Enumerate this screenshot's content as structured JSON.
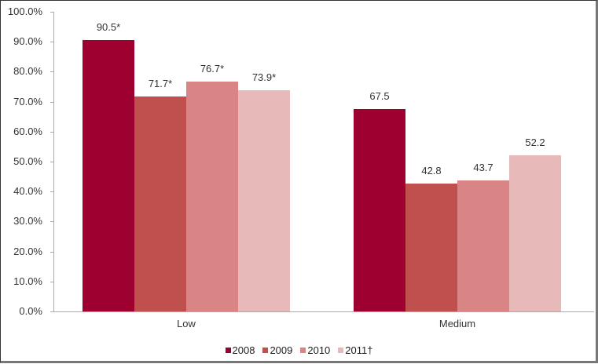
{
  "chart_data": {
    "type": "bar",
    "title": "",
    "xlabel": "",
    "ylabel": "",
    "ylim": [
      0,
      100
    ],
    "y_ticks": [
      "0.0%",
      "10.0%",
      "20.0%",
      "30.0%",
      "40.0%",
      "50.0%",
      "60.0%",
      "70.0%",
      "80.0%",
      "90.0%",
      "100.0%"
    ],
    "categories": [
      "Low",
      "Medium"
    ],
    "series": [
      {
        "name": "2008",
        "color": "#9e0030",
        "values": [
          90.5,
          67.5
        ],
        "labels": [
          "90.5*",
          "67.5"
        ]
      },
      {
        "name": "2009",
        "color": "#c0504d",
        "values": [
          71.7,
          42.8
        ],
        "labels": [
          "71.7*",
          "42.8"
        ]
      },
      {
        "name": "2010",
        "color": "#d98585",
        "values": [
          76.7,
          43.7
        ],
        "labels": [
          "76.7*",
          "43.7"
        ]
      },
      {
        "name": "2011†",
        "color": "#e8b9b9",
        "values": [
          73.9,
          52.2
        ],
        "labels": [
          "73.9*",
          "52.2"
        ]
      }
    ],
    "legend_position": "bottom",
    "grid": false
  }
}
